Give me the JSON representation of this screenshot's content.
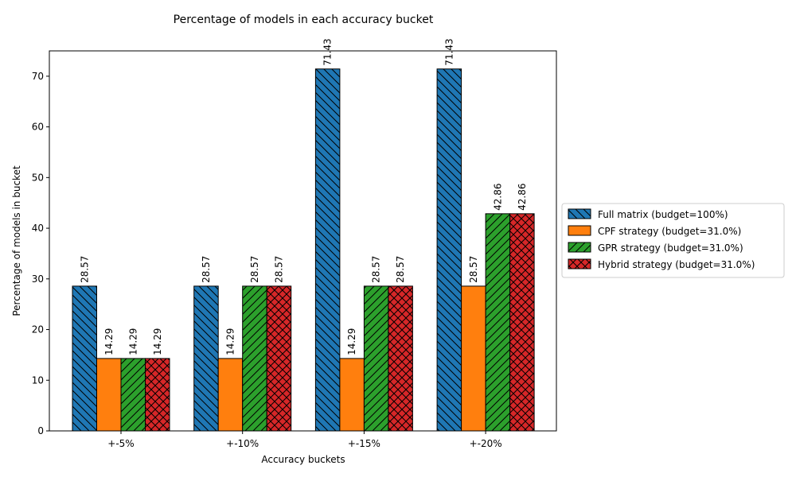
{
  "chart_data": {
    "type": "bar",
    "title": "Percentage of models in each accuracy bucket",
    "xlabel": "Accuracy buckets",
    "ylabel": "Percentage of models in bucket",
    "categories": [
      "+-5%",
      "+-10%",
      "+-15%",
      "+-20%"
    ],
    "ylim": [
      0,
      75
    ],
    "yticks": [
      0,
      10,
      20,
      30,
      40,
      50,
      60,
      70
    ],
    "grid": false,
    "legend_position": "right",
    "series": [
      {
        "name": "Full matrix (budget=100%)",
        "values": [
          28.57,
          28.57,
          71.43,
          71.43
        ],
        "labels": [
          "28.57",
          "28.57",
          "71.43",
          "71.43"
        ],
        "color": "#1f77b4",
        "hatch": "backslash"
      },
      {
        "name": "CPF strategy (budget=31.0%)",
        "values": [
          14.29,
          14.29,
          14.29,
          28.57
        ],
        "labels": [
          "14.29",
          "14.29",
          "14.29",
          "28.57"
        ],
        "color": "#ff7f0e",
        "hatch": "none"
      },
      {
        "name": "GPR strategy (budget=31.0%)",
        "values": [
          14.29,
          28.57,
          28.57,
          42.86
        ],
        "labels": [
          "14.29",
          "28.57",
          "28.57",
          "42.86"
        ],
        "color": "#2ca02c",
        "hatch": "slash"
      },
      {
        "name": "Hybrid strategy (budget=31.0%)",
        "values": [
          14.29,
          28.57,
          28.57,
          42.86
        ],
        "labels": [
          "14.29",
          "28.57",
          "28.57",
          "42.86"
        ],
        "color": "#d62728",
        "hatch": "cross"
      }
    ]
  }
}
